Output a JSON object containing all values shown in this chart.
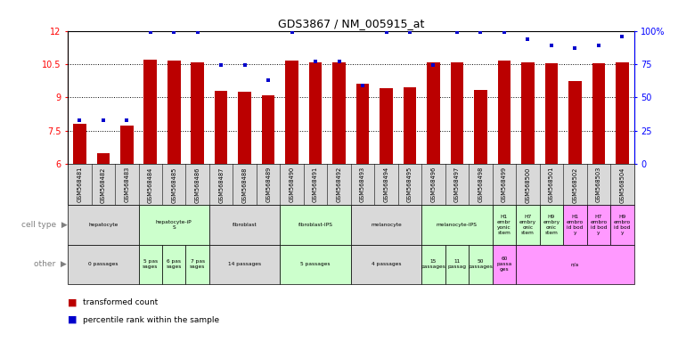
{
  "title": "GDS3867 / NM_005915_at",
  "samples": [
    "GSM568481",
    "GSM568482",
    "GSM568483",
    "GSM568484",
    "GSM568485",
    "GSM568486",
    "GSM568487",
    "GSM568488",
    "GSM568489",
    "GSM568490",
    "GSM568491",
    "GSM568492",
    "GSM568493",
    "GSM568494",
    "GSM568495",
    "GSM568496",
    "GSM568497",
    "GSM568498",
    "GSM568499",
    "GSM568500",
    "GSM568501",
    "GSM568502",
    "GSM568503",
    "GSM568504"
  ],
  "bar_values": [
    7.8,
    6.5,
    7.75,
    10.7,
    10.65,
    10.6,
    9.3,
    9.25,
    9.1,
    10.65,
    10.6,
    10.6,
    9.6,
    9.4,
    9.45,
    10.6,
    10.6,
    9.35,
    10.65,
    10.6,
    10.55,
    9.75,
    10.55,
    10.6
  ],
  "percentile_values": [
    33,
    33,
    33,
    99,
    99,
    99,
    74,
    74,
    63,
    99,
    77,
    77,
    59,
    99,
    99,
    74,
    99,
    99,
    99,
    94,
    89,
    87,
    89,
    96
  ],
  "ylim": [
    6,
    12
  ],
  "yticks": [
    6,
    7.5,
    9,
    10.5,
    12
  ],
  "y2lim": [
    0,
    100
  ],
  "y2ticks": [
    0,
    25,
    50,
    75,
    100
  ],
  "bar_color": "#bb0000",
  "dot_color": "#0000cc",
  "cell_types": [
    {
      "label": "hepatocyte",
      "start": 0,
      "end": 3,
      "color": "#d9d9d9"
    },
    {
      "label": "hepatocyte-iP\nS",
      "start": 3,
      "end": 6,
      "color": "#ccffcc"
    },
    {
      "label": "fibroblast",
      "start": 6,
      "end": 9,
      "color": "#d9d9d9"
    },
    {
      "label": "fibroblast-IPS",
      "start": 9,
      "end": 12,
      "color": "#ccffcc"
    },
    {
      "label": "melanocyte",
      "start": 12,
      "end": 15,
      "color": "#d9d9d9"
    },
    {
      "label": "melanocyte-IPS",
      "start": 15,
      "end": 18,
      "color": "#ccffcc"
    },
    {
      "label": "H1\nembr\nyonic\nstem",
      "start": 18,
      "end": 19,
      "color": "#ccffcc"
    },
    {
      "label": "H7\nembry\nonic\nstem",
      "start": 19,
      "end": 20,
      "color": "#ccffcc"
    },
    {
      "label": "H9\nembry\nonic\nstem",
      "start": 20,
      "end": 21,
      "color": "#ccffcc"
    },
    {
      "label": "H1\nembro\nid bod\ny",
      "start": 21,
      "end": 22,
      "color": "#ff99ff"
    },
    {
      "label": "H7\nembro\nid bod\ny",
      "start": 22,
      "end": 23,
      "color": "#ff99ff"
    },
    {
      "label": "H9\nembro\nid bod\ny",
      "start": 23,
      "end": 24,
      "color": "#ff99ff"
    }
  ],
  "other_types": [
    {
      "label": "0 passages",
      "start": 0,
      "end": 3,
      "color": "#d9d9d9"
    },
    {
      "label": "5 pas\nsages",
      "start": 3,
      "end": 4,
      "color": "#ccffcc"
    },
    {
      "label": "6 pas\nsages",
      "start": 4,
      "end": 5,
      "color": "#ccffcc"
    },
    {
      "label": "7 pas\nsages",
      "start": 5,
      "end": 6,
      "color": "#ccffcc"
    },
    {
      "label": "14 passages",
      "start": 6,
      "end": 9,
      "color": "#d9d9d9"
    },
    {
      "label": "5 passages",
      "start": 9,
      "end": 12,
      "color": "#ccffcc"
    },
    {
      "label": "4 passages",
      "start": 12,
      "end": 15,
      "color": "#d9d9d9"
    },
    {
      "label": "15\npassages",
      "start": 15,
      "end": 16,
      "color": "#ccffcc"
    },
    {
      "label": "11\npassag",
      "start": 16,
      "end": 17,
      "color": "#ccffcc"
    },
    {
      "label": "50\npassages",
      "start": 17,
      "end": 18,
      "color": "#ccffcc"
    },
    {
      "label": "60\npassa\nges",
      "start": 18,
      "end": 19,
      "color": "#ff99ff"
    },
    {
      "label": "n/a",
      "start": 19,
      "end": 24,
      "color": "#ff99ff"
    }
  ],
  "legend": [
    {
      "color": "#bb0000",
      "label": "transformed count"
    },
    {
      "color": "#0000cc",
      "label": "percentile rank within the sample"
    }
  ],
  "left_label_color": "#808080",
  "sample_box_color": "#d9d9d9"
}
